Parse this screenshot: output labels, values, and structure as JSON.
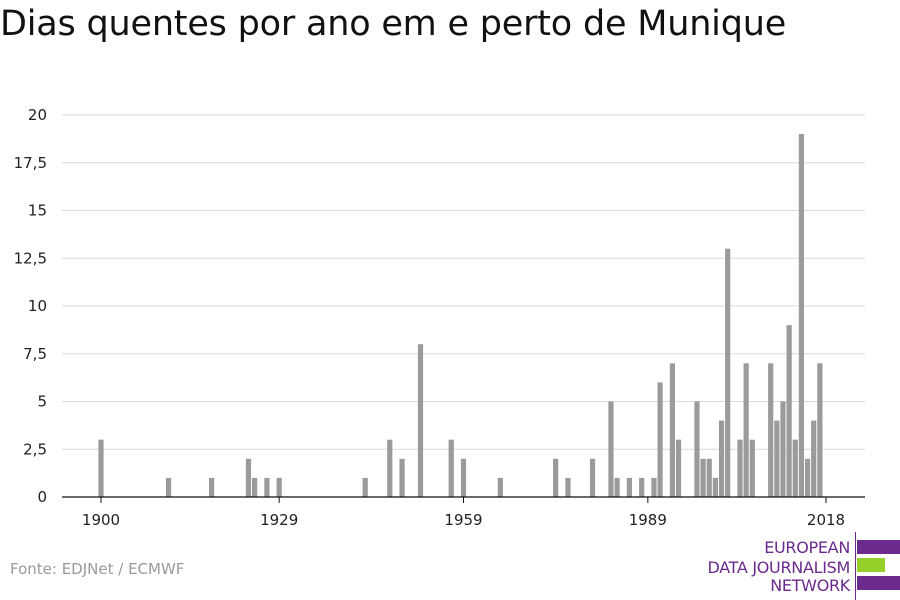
{
  "title": "Dias quentes por ano em e perto de Munique",
  "source": "Fonte: EDJNet / ECMWF",
  "logo": {
    "lines": [
      "EUROPEAN",
      "DATA JOURNALISM",
      "NETWORK"
    ],
    "colors": {
      "purple": "#6a2a8e",
      "green": "#95cf2a"
    }
  },
  "colors": {
    "bar": "#9b9b9b",
    "grid": "#d9d9d9",
    "axis": "#111111"
  },
  "chart_data": {
    "type": "bar",
    "title": "Dias quentes por ano em e perto de Munique",
    "xlabel": "",
    "ylabel": "",
    "xlim": [
      1900,
      2018
    ],
    "ylim": [
      0,
      20
    ],
    "grid": true,
    "x_ticks": [
      {
        "value": 1900,
        "label": "1900"
      },
      {
        "value": 1929,
        "label": "1929"
      },
      {
        "value": 1959,
        "label": "1959"
      },
      {
        "value": 1989,
        "label": "1989"
      },
      {
        "value": 2018,
        "label": "2018"
      }
    ],
    "y_ticks": [
      {
        "value": 0,
        "label": "0"
      },
      {
        "value": 2.5,
        "label": "2,5"
      },
      {
        "value": 5,
        "label": "5"
      },
      {
        "value": 7.5,
        "label": "7,5"
      },
      {
        "value": 10,
        "label": "10"
      },
      {
        "value": 12.5,
        "label": "12,5"
      },
      {
        "value": 15,
        "label": "15"
      },
      {
        "value": 17.5,
        "label": "17,5"
      },
      {
        "value": 20,
        "label": "20"
      }
    ],
    "x": [
      1900,
      1911,
      1918,
      1924,
      1925,
      1927,
      1929,
      1943,
      1947,
      1949,
      1952,
      1957,
      1959,
      1965,
      1974,
      1976,
      1980,
      1983,
      1984,
      1986,
      1988,
      1990,
      1991,
      1993,
      1994,
      1997,
      1998,
      1999,
      2000,
      2001,
      2002,
      2004,
      2005,
      2006,
      2009,
      2010,
      2011,
      2012,
      2013,
      2014,
      2015,
      2016,
      2017
    ],
    "values": [
      3,
      1,
      1,
      2,
      1,
      1,
      1,
      1,
      3,
      2,
      8,
      3,
      2,
      1,
      2,
      1,
      2,
      5,
      1,
      1,
      1,
      1,
      6,
      7,
      3,
      5,
      2,
      2,
      1,
      4,
      13,
      3,
      7,
      3,
      7,
      4,
      5,
      9,
      3,
      19,
      2,
      4,
      7
    ]
  }
}
